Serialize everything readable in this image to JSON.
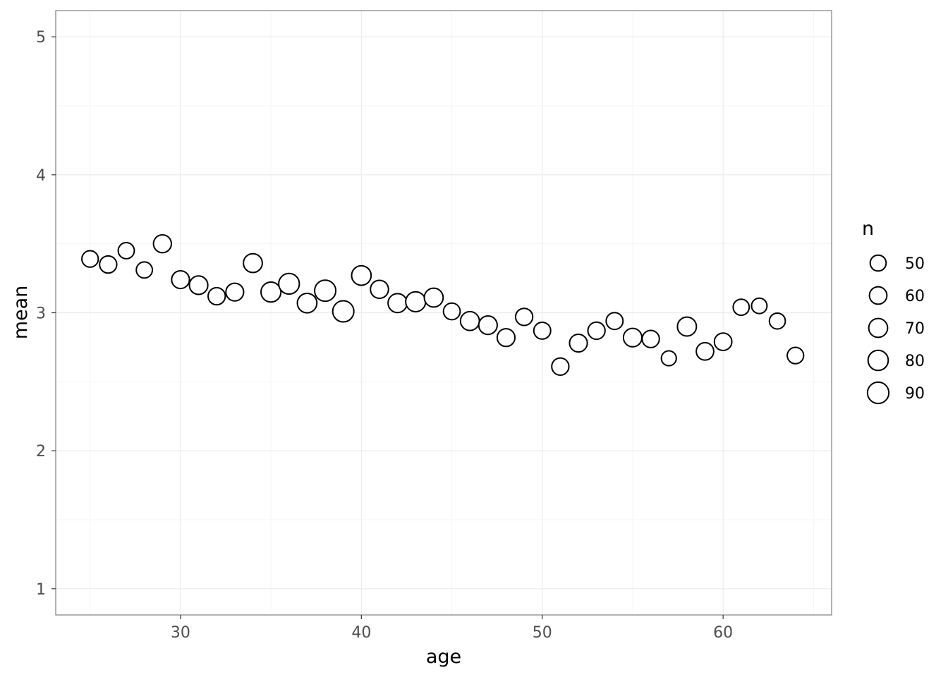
{
  "chart_data": {
    "type": "scatter",
    "xlabel": "age",
    "ylabel": "mean",
    "xlim": [
      23.1,
      66.0
    ],
    "ylim": [
      0.81,
      5.19
    ],
    "x_ticks": [
      30,
      40,
      50,
      60
    ],
    "x_minor_ticks": [
      25,
      35,
      45,
      55,
      65
    ],
    "y_ticks": [
      1,
      2,
      3,
      4,
      5
    ],
    "y_minor_ticks": [
      1.5,
      2.5,
      3.5,
      4.5
    ],
    "x_tick_labels": [
      "30",
      "40",
      "50",
      "60"
    ],
    "y_tick_labels": [
      "1",
      "2",
      "3",
      "4",
      "5"
    ],
    "grid": true,
    "marker": "open-circle",
    "size_variable": "n",
    "points": [
      {
        "x": 25,
        "y": 3.39,
        "n": 53
      },
      {
        "x": 26,
        "y": 3.35,
        "n": 58
      },
      {
        "x": 27,
        "y": 3.45,
        "n": 51
      },
      {
        "x": 28,
        "y": 3.31,
        "n": 51
      },
      {
        "x": 29,
        "y": 3.5,
        "n": 63
      },
      {
        "x": 30,
        "y": 3.24,
        "n": 62
      },
      {
        "x": 31,
        "y": 3.2,
        "n": 67
      },
      {
        "x": 32,
        "y": 3.12,
        "n": 58
      },
      {
        "x": 33,
        "y": 3.15,
        "n": 62
      },
      {
        "x": 34,
        "y": 3.36,
        "n": 70
      },
      {
        "x": 35,
        "y": 3.15,
        "n": 78
      },
      {
        "x": 36,
        "y": 3.21,
        "n": 84
      },
      {
        "x": 37,
        "y": 3.07,
        "n": 75
      },
      {
        "x": 38,
        "y": 3.16,
        "n": 88
      },
      {
        "x": 39,
        "y": 3.01,
        "n": 88
      },
      {
        "x": 40,
        "y": 3.27,
        "n": 75
      },
      {
        "x": 41,
        "y": 3.17,
        "n": 64
      },
      {
        "x": 42,
        "y": 3.07,
        "n": 71
      },
      {
        "x": 43,
        "y": 3.08,
        "n": 78
      },
      {
        "x": 44,
        "y": 3.11,
        "n": 70
      },
      {
        "x": 45,
        "y": 3.01,
        "n": 55
      },
      {
        "x": 46,
        "y": 2.94,
        "n": 70
      },
      {
        "x": 47,
        "y": 2.91,
        "n": 67
      },
      {
        "x": 48,
        "y": 2.82,
        "n": 62
      },
      {
        "x": 49,
        "y": 2.97,
        "n": 58
      },
      {
        "x": 50,
        "y": 2.87,
        "n": 56
      },
      {
        "x": 51,
        "y": 2.61,
        "n": 58
      },
      {
        "x": 52,
        "y": 2.78,
        "n": 62
      },
      {
        "x": 53,
        "y": 2.87,
        "n": 58
      },
      {
        "x": 54,
        "y": 2.94,
        "n": 56
      },
      {
        "x": 55,
        "y": 2.82,
        "n": 67
      },
      {
        "x": 56,
        "y": 2.81,
        "n": 58
      },
      {
        "x": 57,
        "y": 2.67,
        "n": 44
      },
      {
        "x": 58,
        "y": 2.9,
        "n": 71
      },
      {
        "x": 59,
        "y": 2.72,
        "n": 60
      },
      {
        "x": 60,
        "y": 2.79,
        "n": 60
      },
      {
        "x": 61,
        "y": 3.04,
        "n": 51
      },
      {
        "x": 62,
        "y": 3.05,
        "n": 47
      },
      {
        "x": 63,
        "y": 2.94,
        "n": 50
      },
      {
        "x": 64,
        "y": 2.69,
        "n": 53
      }
    ],
    "legend": {
      "title": "n",
      "placement": "right",
      "values": [
        50,
        60,
        70,
        80,
        90
      ],
      "labels": [
        "50",
        "60",
        "70",
        "80",
        "90"
      ]
    },
    "colors": {
      "point_stroke": "#000000",
      "point_fill": "#ffffff",
      "grid_major": "#ebebeb",
      "grid_minor": "#f5f5f5",
      "panel_border": "#7f7f7f",
      "background": "#ffffff"
    }
  }
}
